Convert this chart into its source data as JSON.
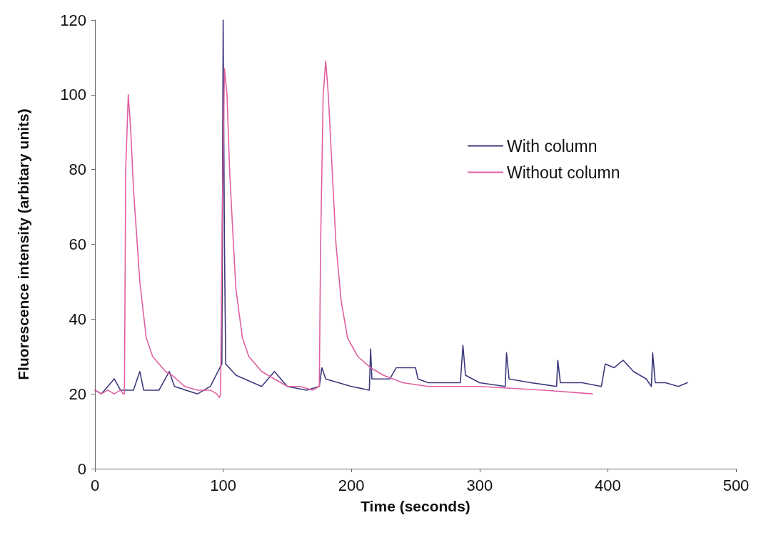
{
  "chart_data": {
    "type": "line",
    "xlabel": "Time (seconds)",
    "ylabel": "Fluorescence intensity (arbitary units)",
    "xlim": [
      0,
      500
    ],
    "xticks": [
      0,
      100,
      200,
      300,
      400,
      500
    ],
    "ylim": [
      0,
      120
    ],
    "yticks": [
      0,
      20,
      40,
      60,
      80,
      100,
      120
    ],
    "grid": false,
    "legend": "top right",
    "marker": "none",
    "line_style": "solid",
    "series": [
      {
        "name": "With column",
        "color": "#3b3a7e",
        "x": [
          0,
          5,
          10,
          15,
          20,
          30,
          35,
          38,
          50,
          58,
          62,
          80,
          90,
          96,
          99,
          100,
          101,
          102,
          110,
          130,
          140,
          150,
          165,
          175,
          177,
          180,
          200,
          214,
          215,
          216,
          230,
          235,
          250,
          252,
          260,
          285,
          287,
          289,
          300,
          320,
          321,
          323,
          340,
          360,
          361,
          363,
          380,
          395,
          398,
          405,
          412,
          420,
          430,
          434,
          435,
          437,
          445,
          455,
          462
        ],
        "values": [
          21,
          20,
          22,
          24,
          21,
          21,
          26,
          21,
          21,
          26,
          22,
          20,
          22,
          26,
          28,
          120,
          60,
          28,
          25,
          22,
          26,
          22,
          21,
          22,
          27,
          24,
          22,
          21,
          32,
          24,
          24,
          27,
          27,
          24,
          23,
          23,
          33,
          25,
          23,
          22,
          31,
          24,
          23,
          22,
          29,
          23,
          23,
          22,
          28,
          27,
          29,
          26,
          24,
          22,
          31,
          23,
          23,
          22,
          23
        ]
      },
      {
        "name": "Without column",
        "color": "#e060a0",
        "x": [
          0,
          5,
          10,
          15,
          20,
          22,
          23,
          24,
          26,
          28,
          30,
          35,
          40,
          45,
          50,
          55,
          60,
          70,
          80,
          90,
          95,
          97,
          98,
          99,
          101,
          103,
          105,
          108,
          110,
          115,
          120,
          130,
          140,
          150,
          160,
          170,
          175,
          176,
          178,
          180,
          182,
          185,
          188,
          192,
          197,
          205,
          215,
          225,
          240,
          260,
          300,
          350,
          388
        ],
        "values": [
          21,
          20,
          21,
          20,
          21,
          20,
          20,
          80,
          100,
          90,
          75,
          50,
          35,
          30,
          28,
          26,
          25,
          22,
          21,
          21,
          20,
          19,
          20,
          60,
          107,
          100,
          80,
          60,
          48,
          35,
          30,
          26,
          24,
          22,
          22,
          21,
          22,
          60,
          100,
          109,
          100,
          80,
          60,
          45,
          35,
          30,
          27,
          25,
          23,
          22,
          22,
          21,
          20
        ]
      }
    ]
  }
}
